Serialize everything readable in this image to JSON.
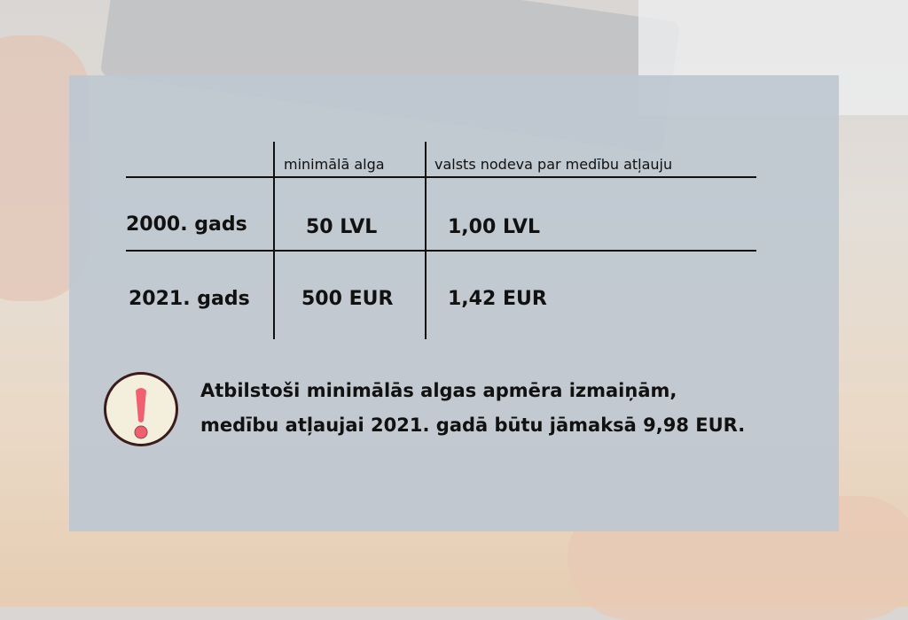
{
  "table": {
    "headers": [
      "",
      "minimālā alga",
      "valsts nodeva par medību atļauju"
    ],
    "rows": [
      {
        "year": "2000. gads",
        "wage": "50 LVL",
        "fee": "1,00 LVL"
      },
      {
        "year": "2021. gads",
        "wage": "500 EUR",
        "fee": "1,42 EUR"
      }
    ]
  },
  "note": {
    "icon": "exclamation-icon",
    "lines": [
      "Atbilstoši minimālās algas apmēra izmaiņām,",
      "medību atļaujai 2021. gadā būtu jāmaksā 9,98 EUR."
    ]
  },
  "colors": {
    "panel": "#bec7d1",
    "icon_fill": "#f4efdc",
    "icon_mark": "#f06070",
    "icon_border": "#3a1c1c"
  }
}
